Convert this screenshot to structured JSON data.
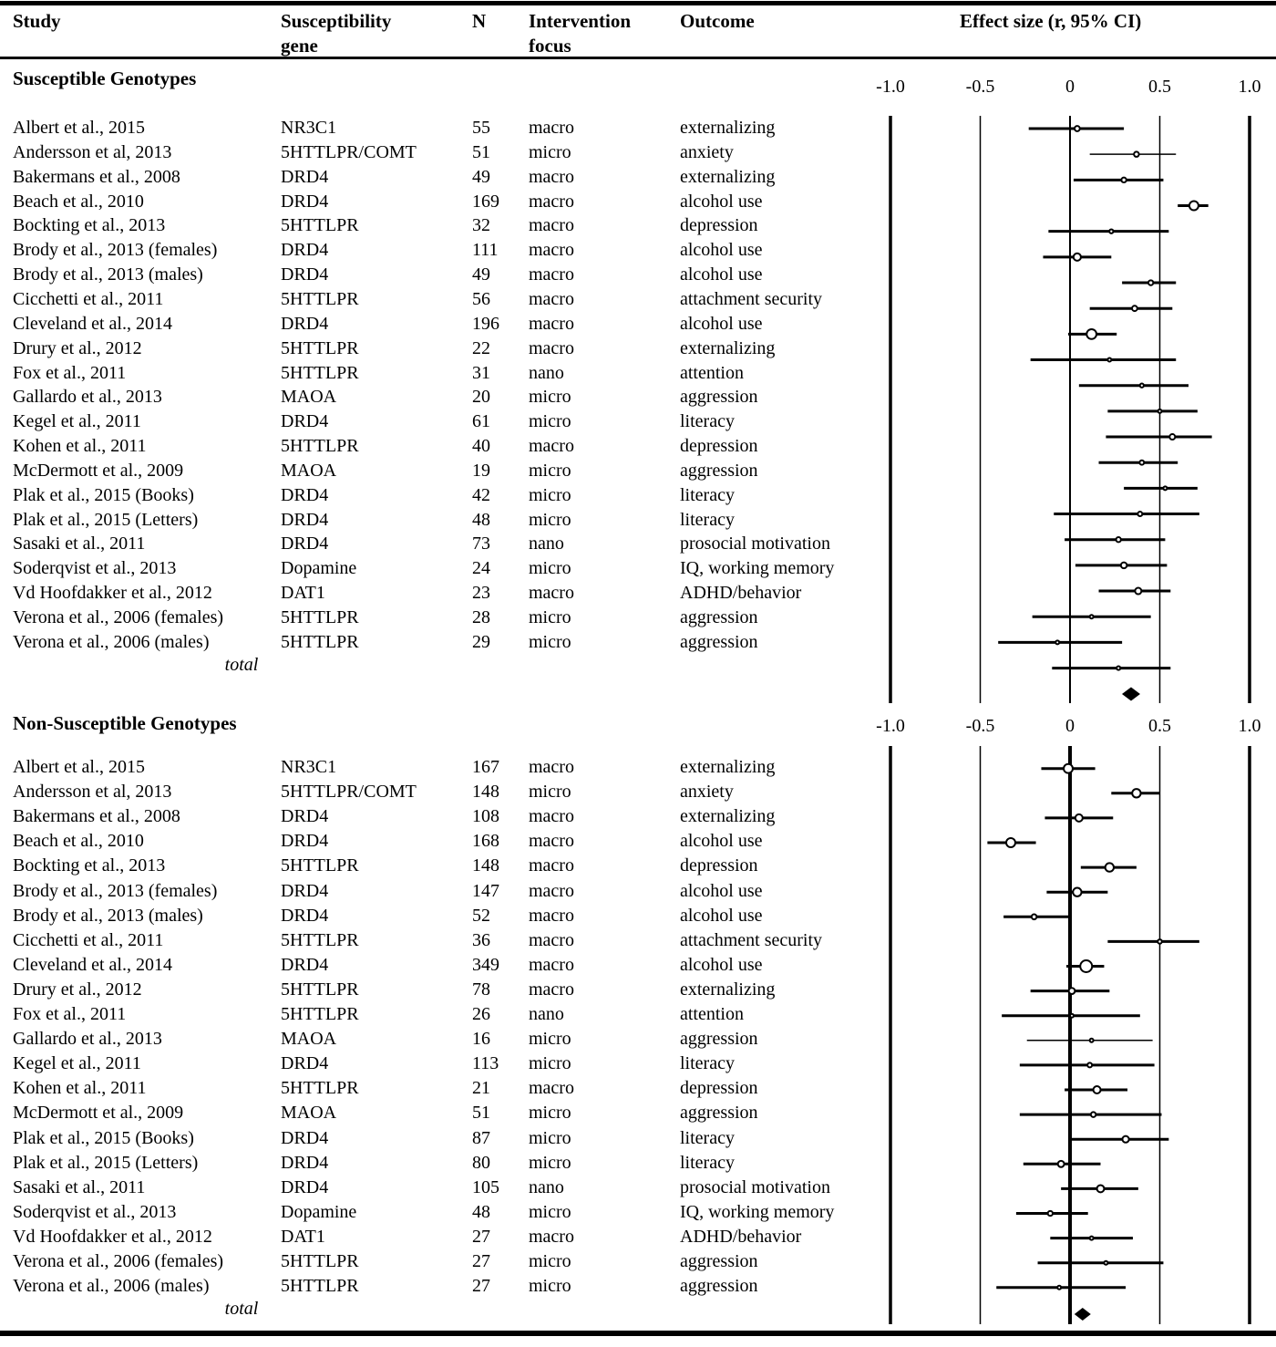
{
  "header": {
    "study": "Study",
    "gene_line1": "Susceptibility",
    "gene_line2": "gene",
    "n": "N",
    "focus_line1": "Intervention",
    "focus_line2": "focus",
    "outcome": "Outcome",
    "effect": "Effect size (r, 95% CI)"
  },
  "colors": {
    "ink": "#000000",
    "paper": "#ffffff"
  },
  "chart_data": {
    "type": "forest",
    "title": "Effect size (r, 95% CI)",
    "xlim": [
      -1.0,
      1.0
    ],
    "x_tick_labels": [
      "-1.0",
      "-0.5",
      "0",
      "0.5",
      "1.0"
    ],
    "x_tick_values": [
      -1.0,
      -0.5,
      0,
      0.5,
      1.0
    ],
    "grid": "vertical-reference-lines",
    "legend": "none",
    "sections": [
      {
        "title": "Susceptible Genotypes",
        "total_label": "total",
        "rows": [
          {
            "study": "Albert et al., 2015",
            "gene": "NR3C1",
            "n": 55,
            "focus": "macro",
            "outcome": "externalizing",
            "r": 0.04,
            "ci": [
              -0.23,
              0.3
            ]
          },
          {
            "study": "Andersson et al, 2013",
            "gene": "5HTTLPR/COMT",
            "n": 51,
            "focus": "micro",
            "outcome": "anxiety",
            "r": 0.37,
            "ci": [
              0.11,
              0.59
            ],
            "thin": true
          },
          {
            "study": "Bakermans et al., 2008",
            "gene": "DRD4",
            "n": 49,
            "focus": "macro",
            "outcome": "externalizing",
            "r": 0.3,
            "ci": [
              0.02,
              0.52
            ]
          },
          {
            "study": "Beach et al., 2010",
            "gene": "DRD4",
            "n": 169,
            "focus": "macro",
            "outcome": "alcohol use",
            "r": 0.69,
            "ci": [
              0.6,
              0.77
            ]
          },
          {
            "study": "Bockting et al., 2013",
            "gene": "5HTTLPR",
            "n": 32,
            "focus": "macro",
            "outcome": "depression",
            "r": 0.23,
            "ci": [
              -0.12,
              0.55
            ]
          },
          {
            "study": "Brody et al., 2013 (females)",
            "gene": "DRD4",
            "n": 111,
            "focus": "macro",
            "outcome": "alcohol use",
            "r": 0.04,
            "ci": [
              -0.15,
              0.23
            ]
          },
          {
            "study": "Brody et al., 2013 (males)",
            "gene": "DRD4",
            "n": 49,
            "focus": "macro",
            "outcome": "alcohol use",
            "r": 0.45,
            "ci": [
              0.29,
              0.59
            ]
          },
          {
            "study": "Cicchetti et al., 2011",
            "gene": "5HTTLPR",
            "n": 56,
            "focus": "macro",
            "outcome": "attachment security",
            "r": 0.36,
            "ci": [
              0.11,
              0.57
            ]
          },
          {
            "study": "Cleveland et al., 2014",
            "gene": "DRD4",
            "n": 196,
            "focus": "macro",
            "outcome": "alcohol use",
            "r": 0.12,
            "ci": [
              -0.01,
              0.26
            ]
          },
          {
            "study": "Drury et al., 2012",
            "gene": "5HTTLPR",
            "n": 22,
            "focus": "macro",
            "outcome": "externalizing",
            "r": 0.22,
            "ci": [
              -0.22,
              0.59
            ]
          },
          {
            "study": "Fox et al., 2011",
            "gene": "5HTTLPR",
            "n": 31,
            "focus": "nano",
            "outcome": "attention",
            "r": 0.4,
            "ci": [
              0.05,
              0.66
            ]
          },
          {
            "study": "Gallardo et al., 2013",
            "gene": "MAOA",
            "n": 20,
            "focus": "micro",
            "outcome": "aggression",
            "r": 0.5,
            "ci": [
              0.21,
              0.71
            ]
          },
          {
            "study": "Kegel et al., 2011",
            "gene": "DRD4",
            "n": 61,
            "focus": "micro",
            "outcome": "literacy",
            "r": 0.57,
            "ci": [
              0.2,
              0.79
            ]
          },
          {
            "study": "Kohen et al., 2011",
            "gene": "5HTTLPR",
            "n": 40,
            "focus": "macro",
            "outcome": "depression",
            "r": 0.4,
            "ci": [
              0.16,
              0.6
            ]
          },
          {
            "study": "McDermott et al., 2009",
            "gene": "MAOA",
            "n": 19,
            "focus": "micro",
            "outcome": "aggression",
            "r": 0.53,
            "ci": [
              0.3,
              0.71
            ]
          },
          {
            "study": "Plak et al., 2015 (Books)",
            "gene": "DRD4",
            "n": 42,
            "focus": "micro",
            "outcome": "literacy",
            "r": 0.39,
            "ci": [
              -0.09,
              0.72
            ]
          },
          {
            "study": "Plak et al., 2015 (Letters)",
            "gene": "DRD4",
            "n": 48,
            "focus": "micro",
            "outcome": "literacy",
            "r": 0.27,
            "ci": [
              -0.03,
              0.53
            ]
          },
          {
            "study": "Sasaki et al., 2011",
            "gene": "DRD4",
            "n": 73,
            "focus": "nano",
            "outcome": "prosocial motivation",
            "r": 0.3,
            "ci": [
              0.03,
              0.54
            ]
          },
          {
            "study": "Soderqvist et al., 2013",
            "gene": "Dopamine",
            "n": 24,
            "focus": "micro",
            "outcome": "IQ, working memory",
            "r": 0.38,
            "ci": [
              0.16,
              0.56
            ],
            "ms": 7
          },
          {
            "study": "Vd Hoofdakker et al., 2012",
            "gene": "DAT1",
            "n": 23,
            "focus": "macro",
            "outcome": "ADHD/behavior",
            "r": 0.12,
            "ci": [
              -0.21,
              0.45
            ]
          },
          {
            "study": "Verona et al., 2006 (females)",
            "gene": "5HTTLPR",
            "n": 28,
            "focus": "micro",
            "outcome": "aggression",
            "r": -0.07,
            "ci": [
              -0.4,
              0.29
            ]
          },
          {
            "study": "Verona et al., 2006 (males)",
            "gene": "5HTTLPR",
            "n": 29,
            "focus": "micro",
            "outcome": "aggression",
            "r": 0.27,
            "ci": [
              -0.1,
              0.56
            ]
          }
        ],
        "total": {
          "r": 0.34,
          "ci": [
            0.29,
            0.39
          ]
        }
      },
      {
        "title": "Non-Susceptible Genotypes",
        "total_label": "total",
        "rows": [
          {
            "study": "Albert et al., 2015",
            "gene": "NR3C1",
            "n": 167,
            "focus": "macro",
            "outcome": "externalizing",
            "r": -0.01,
            "ci": [
              -0.16,
              0.14
            ]
          },
          {
            "study": "Andersson et al, 2013",
            "gene": "5HTTLPR/COMT",
            "n": 148,
            "focus": "micro",
            "outcome": "anxiety",
            "r": 0.37,
            "ci": [
              0.23,
              0.5
            ]
          },
          {
            "study": "Bakermans et al., 2008",
            "gene": "DRD4",
            "n": 108,
            "focus": "macro",
            "outcome": "externalizing",
            "r": 0.05,
            "ci": [
              -0.14,
              0.24
            ]
          },
          {
            "study": "Beach et al., 2010",
            "gene": "DRD4",
            "n": 168,
            "focus": "macro",
            "outcome": "alcohol use",
            "r": -0.33,
            "ci": [
              -0.46,
              -0.19
            ]
          },
          {
            "study": "Bockting et al., 2013",
            "gene": "5HTTLPR",
            "n": 148,
            "focus": "macro",
            "outcome": "depression",
            "r": 0.22,
            "ci": [
              0.06,
              0.37
            ]
          },
          {
            "study": "Brody et al., 2013 (females)",
            "gene": "DRD4",
            "n": 147,
            "focus": "macro",
            "outcome": "alcohol use",
            "r": 0.04,
            "ci": [
              -0.13,
              0.21
            ]
          },
          {
            "study": "Brody et al., 2013 (males)",
            "gene": "DRD4",
            "n": 52,
            "focus": "macro",
            "outcome": "alcohol use",
            "r": -0.2,
            "ci": [
              -0.37,
              -0.01
            ]
          },
          {
            "study": "Cicchetti et al., 2011",
            "gene": "5HTTLPR",
            "n": 36,
            "focus": "macro",
            "outcome": "attachment security",
            "r": 0.5,
            "ci": [
              0.21,
              0.72
            ]
          },
          {
            "study": "Cleveland et al., 2014",
            "gene": "DRD4",
            "n": 349,
            "focus": "macro",
            "outcome": "alcohol use",
            "r": 0.09,
            "ci": [
              -0.02,
              0.19
            ]
          },
          {
            "study": "Drury et al., 2012",
            "gene": "5HTTLPR",
            "n": 78,
            "focus": "macro",
            "outcome": "externalizing",
            "r": 0.01,
            "ci": [
              -0.22,
              0.22
            ]
          },
          {
            "study": "Fox et al., 2011",
            "gene": "5HTTLPR",
            "n": 26,
            "focus": "nano",
            "outcome": "attention",
            "r": 0.01,
            "ci": [
              -0.38,
              0.39
            ]
          },
          {
            "study": "Gallardo et al., 2013",
            "gene": "MAOA",
            "n": 16,
            "focus": "micro",
            "outcome": "aggression",
            "r": 0.12,
            "ci": [
              -0.24,
              0.46
            ],
            "thin": true
          },
          {
            "study": "Kegel et al., 2011",
            "gene": "DRD4",
            "n": 113,
            "focus": "micro",
            "outcome": "literacy",
            "r": 0.11,
            "ci": [
              -0.28,
              0.47
            ],
            "ms": 5
          },
          {
            "study": "Kohen et al., 2011",
            "gene": "5HTTLPR",
            "n": 21,
            "focus": "macro",
            "outcome": "depression",
            "r": 0.15,
            "ci": [
              -0.03,
              0.32
            ],
            "ms": 8
          },
          {
            "study": "McDermott et al., 2009",
            "gene": "MAOA",
            "n": 51,
            "focus": "micro",
            "outcome": "aggression",
            "r": 0.13,
            "ci": [
              -0.28,
              0.51
            ]
          },
          {
            "study": "Plak et al., 2015 (Books)",
            "gene": "DRD4",
            "n": 87,
            "focus": "micro",
            "outcome": "literacy",
            "r": 0.31,
            "ci": [
              0.01,
              0.55
            ]
          },
          {
            "study": "Plak et al., 2015 (Letters)",
            "gene": "DRD4",
            "n": 80,
            "focus": "micro",
            "outcome": "literacy",
            "r": -0.05,
            "ci": [
              -0.26,
              0.17
            ]
          },
          {
            "study": "Sasaki et al., 2011",
            "gene": "DRD4",
            "n": 105,
            "focus": "nano",
            "outcome": "prosocial motivation",
            "r": 0.17,
            "ci": [
              -0.05,
              0.38
            ]
          },
          {
            "study": "Soderqvist et al., 2013",
            "gene": "Dopamine",
            "n": 48,
            "focus": "micro",
            "outcome": "IQ, working memory",
            "r": -0.11,
            "ci": [
              -0.3,
              0.1
            ]
          },
          {
            "study": "Vd Hoofdakker et al., 2012",
            "gene": "DAT1",
            "n": 27,
            "focus": "macro",
            "outcome": "ADHD/behavior",
            "r": 0.12,
            "ci": [
              -0.11,
              0.35
            ]
          },
          {
            "study": "Verona et al., 2006 (females)",
            "gene": "5HTTLPR",
            "n": 27,
            "focus": "micro",
            "outcome": "aggression",
            "r": 0.2,
            "ci": [
              -0.18,
              0.52
            ]
          },
          {
            "study": "Verona et al., 2006 (males)",
            "gene": "5HTTLPR",
            "n": 27,
            "focus": "micro",
            "outcome": "aggression",
            "r": -0.06,
            "ci": [
              -0.41,
              0.31
            ]
          }
        ],
        "total": {
          "r": 0.07,
          "ci": [
            0.03,
            0.11
          ]
        }
      }
    ]
  }
}
